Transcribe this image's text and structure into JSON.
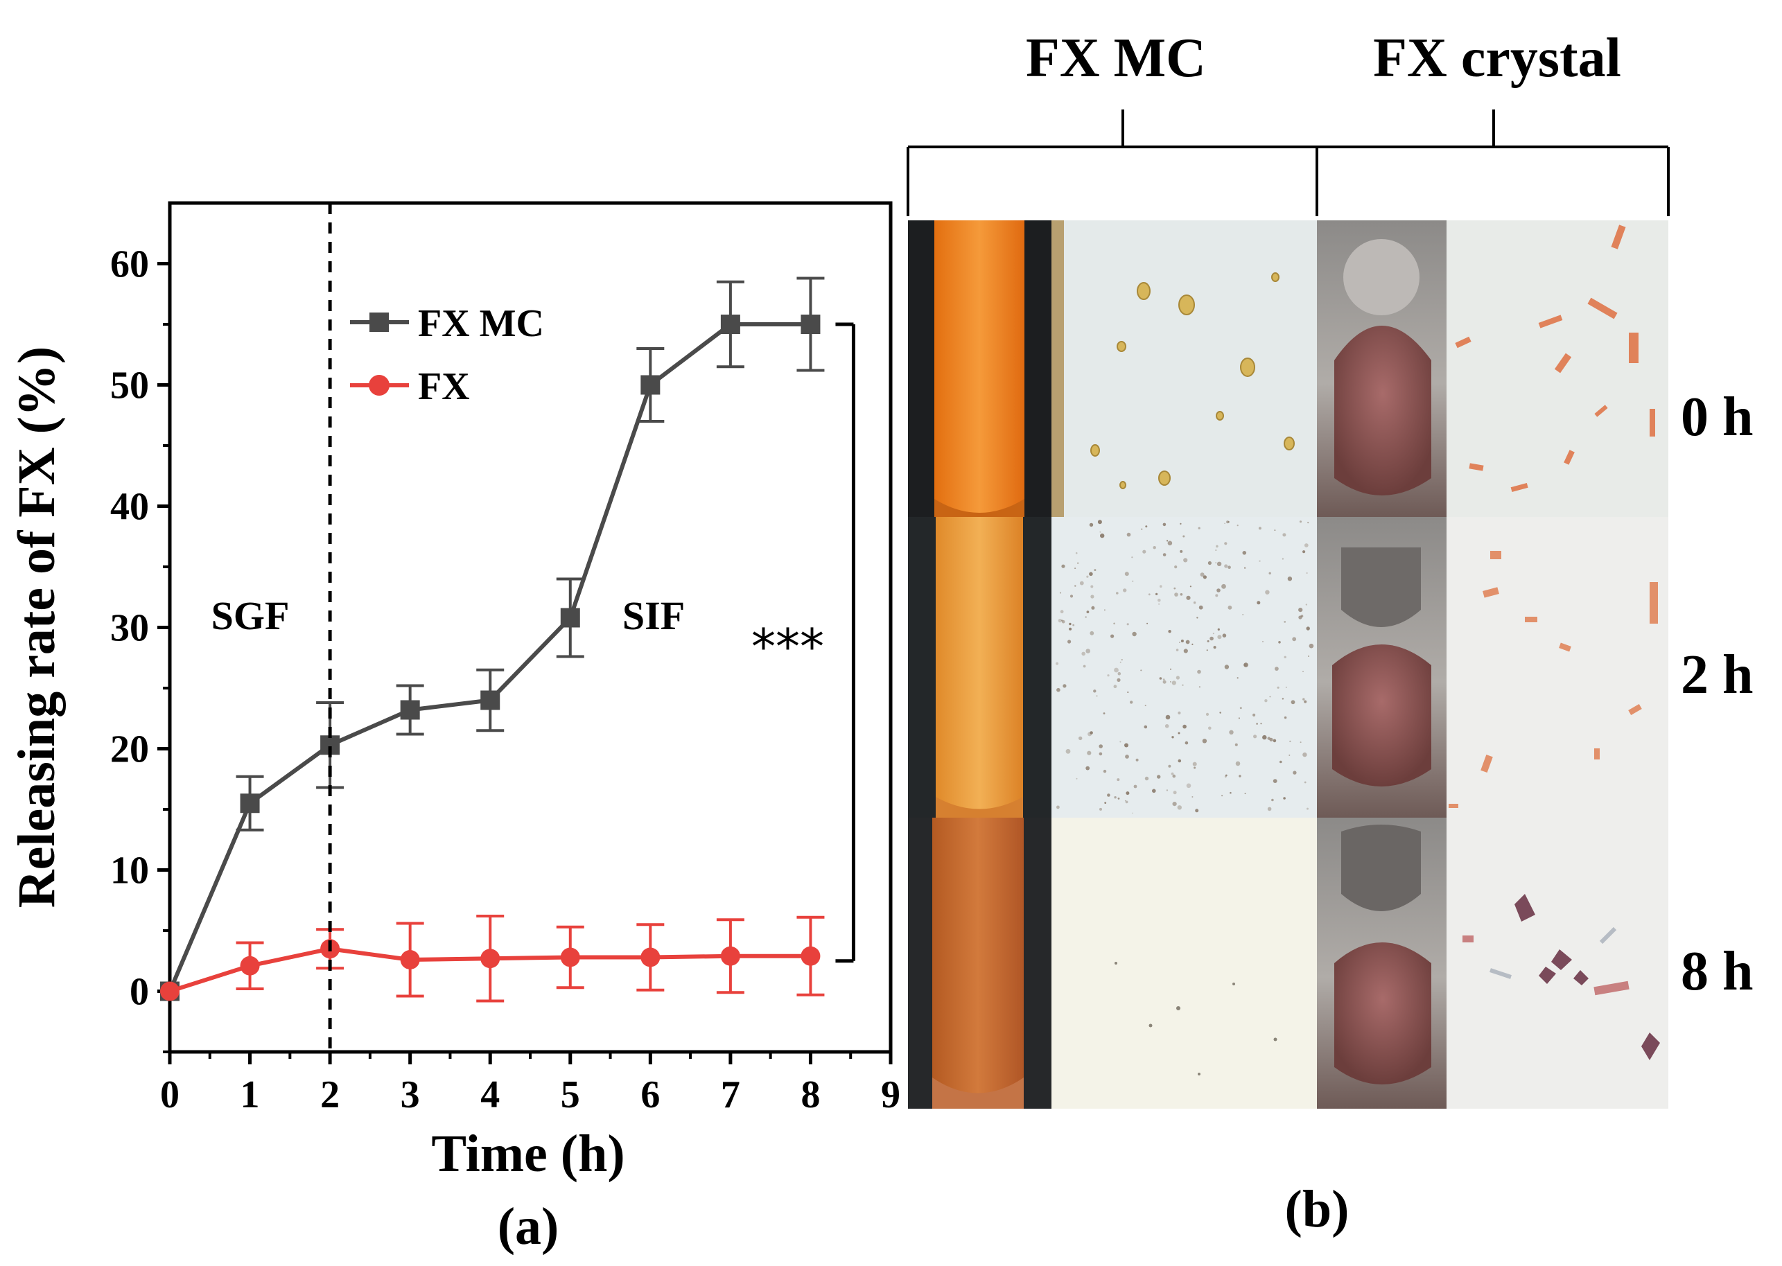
{
  "chart_data": {
    "type": "line",
    "title": "",
    "panel_label": "(a)",
    "xlabel": "Time (h)",
    "ylabel": "Releasing rate of FX (%)",
    "xlim": [
      0,
      9
    ],
    "ylim": [
      -5,
      65
    ],
    "xticks": [
      0,
      1,
      2,
      3,
      4,
      5,
      6,
      7,
      8,
      9
    ],
    "yticks": [
      0,
      10,
      20,
      30,
      40,
      50,
      60
    ],
    "x": [
      0,
      1,
      2,
      3,
      4,
      5,
      6,
      7,
      8
    ],
    "series": [
      {
        "name": "FX MC",
        "color": "#4a4a4a",
        "marker": "square",
        "values": [
          0,
          15.5,
          20.3,
          23.2,
          24.0,
          30.8,
          50.0,
          55.0,
          55.0
        ],
        "errors": [
          0,
          2.2,
          3.5,
          2.0,
          2.5,
          3.2,
          3.0,
          3.5,
          3.8
        ]
      },
      {
        "name": "FX",
        "color": "#e8413c",
        "marker": "circle",
        "values": [
          0,
          2.1,
          3.5,
          2.6,
          2.7,
          2.8,
          2.8,
          2.9,
          2.9
        ],
        "errors": [
          0,
          1.9,
          1.6,
          3.0,
          3.5,
          2.5,
          2.7,
          3.0,
          3.2
        ]
      }
    ],
    "divider_x": 2,
    "annotations": [
      {
        "text": "SGF",
        "x": 0.9,
        "y": 31
      },
      {
        "text": "SIF",
        "x": 6.3,
        "y": 31
      }
    ],
    "significance": {
      "text": "***",
      "y_top": 55,
      "y_bottom": 2.5
    },
    "legend_position": "top-left"
  },
  "panel_b": {
    "label": "(b)",
    "columns": [
      "FX MC",
      "FX crystal"
    ],
    "rows": [
      "0 h",
      "2 h",
      "8 h"
    ]
  },
  "colors": {
    "axis": "#000000",
    "fx_mc": "#4a4a4a",
    "fx": "#e8413c"
  }
}
